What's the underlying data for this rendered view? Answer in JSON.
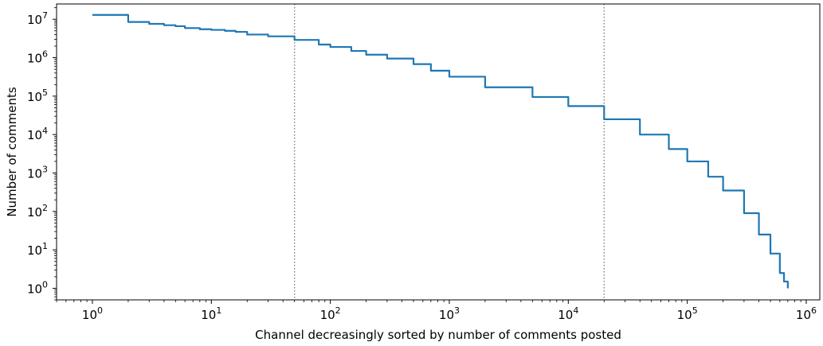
{
  "chart_data": {
    "type": "line",
    "title": "",
    "xlabel": "Channel decreasingly sorted by number of comments posted",
    "ylabel": "Number of comments",
    "xscale": "log",
    "yscale": "log",
    "xlim": [
      0.5,
      1300000
    ],
    "ylim": [
      0.5,
      25000000
    ],
    "grid": false,
    "legend": "none",
    "line_color": "#1f77b4",
    "vline_color": "#808080",
    "x_ticks": [
      {
        "base": "10",
        "exp": "0",
        "value": 1
      },
      {
        "base": "10",
        "exp": "1",
        "value": 10
      },
      {
        "base": "10",
        "exp": "2",
        "value": 100
      },
      {
        "base": "10",
        "exp": "3",
        "value": 1000
      },
      {
        "base": "10",
        "exp": "4",
        "value": 10000
      },
      {
        "base": "10",
        "exp": "5",
        "value": 100000
      },
      {
        "base": "10",
        "exp": "6",
        "value": 1000000
      }
    ],
    "y_ticks": [
      {
        "base": "10",
        "exp": "0",
        "value": 1
      },
      {
        "base": "10",
        "exp": "1",
        "value": 10
      },
      {
        "base": "10",
        "exp": "2",
        "value": 100
      },
      {
        "base": "10",
        "exp": "3",
        "value": 1000
      },
      {
        "base": "10",
        "exp": "4",
        "value": 10000
      },
      {
        "base": "10",
        "exp": "5",
        "value": 100000
      },
      {
        "base": "10",
        "exp": "6",
        "value": 1000000
      },
      {
        "base": "10",
        "exp": "7",
        "value": 10000000
      }
    ],
    "vlines": [
      50,
      20000
    ],
    "series": [
      {
        "x": [
          1,
          2,
          3,
          4,
          5,
          6,
          8,
          10,
          13,
          16,
          20,
          30,
          50,
          80,
          100,
          150,
          200,
          300,
          500,
          700,
          1000,
          2000,
          5000,
          10000,
          20000,
          40000,
          70000,
          100000,
          150000,
          200000,
          300000,
          400000,
          500000,
          600000,
          650000,
          700000
        ],
        "y": [
          13000000,
          8500000,
          7600000,
          7000000,
          6600000,
          5900000,
          5500000,
          5300000,
          5000000,
          4700000,
          4000000,
          3600000,
          2900000,
          2200000,
          1900000,
          1500000,
          1200000,
          950000,
          680000,
          460000,
          320000,
          170000,
          95000,
          55000,
          25000,
          10000,
          4200,
          2000,
          800,
          350,
          90,
          25,
          8,
          2.5,
          1.5,
          1
        ]
      }
    ]
  }
}
